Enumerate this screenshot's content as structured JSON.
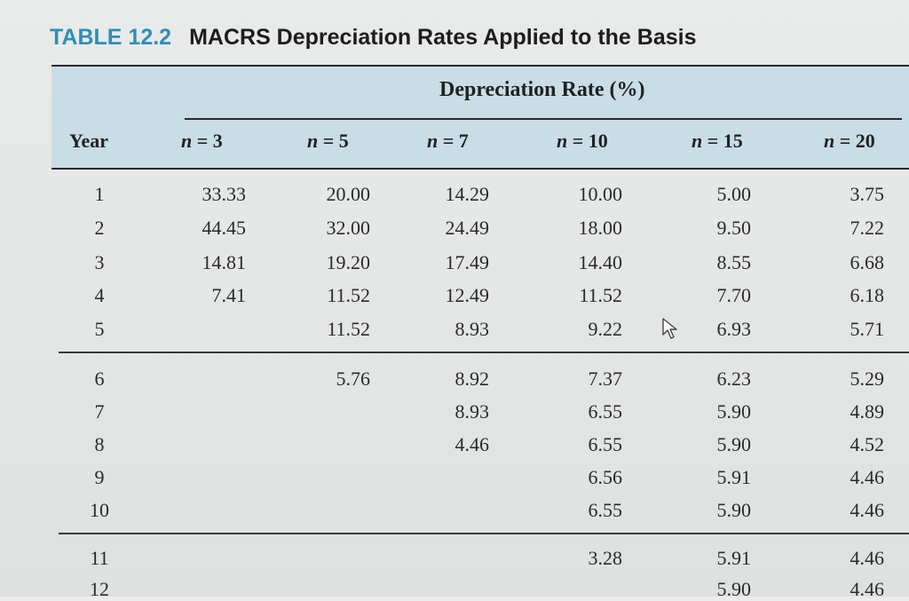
{
  "table": {
    "number": "TABLE 12.2",
    "caption": "MACRS Depreciation Rates Applied to the Basis",
    "group_header": "Depreciation Rate (%)",
    "year_header": "Year",
    "columns": [
      "n = 3",
      "n = 5",
      "n = 7",
      "n = 10",
      "n = 15",
      "n = 20"
    ],
    "rows": [
      {
        "year": "1",
        "values": [
          "33.33",
          "20.00",
          "14.29",
          "10.00",
          "5.00",
          "3.75"
        ]
      },
      {
        "year": "2",
        "values": [
          "44.45",
          "32.00",
          "24.49",
          "18.00",
          "9.50",
          "7.22"
        ]
      },
      {
        "year": "3",
        "values": [
          "14.81",
          "19.20",
          "17.49",
          "14.40",
          "8.55",
          "6.68"
        ]
      },
      {
        "year": "4",
        "values": [
          "7.41",
          "11.52",
          "12.49",
          "11.52",
          "7.70",
          "6.18"
        ]
      },
      {
        "year": "5",
        "values": [
          "",
          "11.52",
          "8.93",
          "9.22",
          "6.93",
          "5.71"
        ]
      },
      {
        "year": "6",
        "values": [
          "",
          "5.76",
          "8.92",
          "7.37",
          "6.23",
          "5.29"
        ]
      },
      {
        "year": "7",
        "values": [
          "",
          "",
          "8.93",
          "6.55",
          "5.90",
          "4.89"
        ]
      },
      {
        "year": "8",
        "values": [
          "",
          "",
          "4.46",
          "6.55",
          "5.90",
          "4.52"
        ]
      },
      {
        "year": "9",
        "values": [
          "",
          "",
          "",
          "6.56",
          "5.91",
          "4.46"
        ]
      },
      {
        "year": "10",
        "values": [
          "",
          "",
          "",
          "6.55",
          "5.90",
          "4.46"
        ]
      },
      {
        "year": "11",
        "values": [
          "",
          "",
          "",
          "3.28",
          "5.91",
          "4.46"
        ]
      },
      {
        "year": "12",
        "values": [
          "",
          "",
          "",
          "",
          "5.90",
          "4.46"
        ]
      }
    ]
  },
  "icons": {
    "cursor": "mouse-pointer-icon"
  }
}
